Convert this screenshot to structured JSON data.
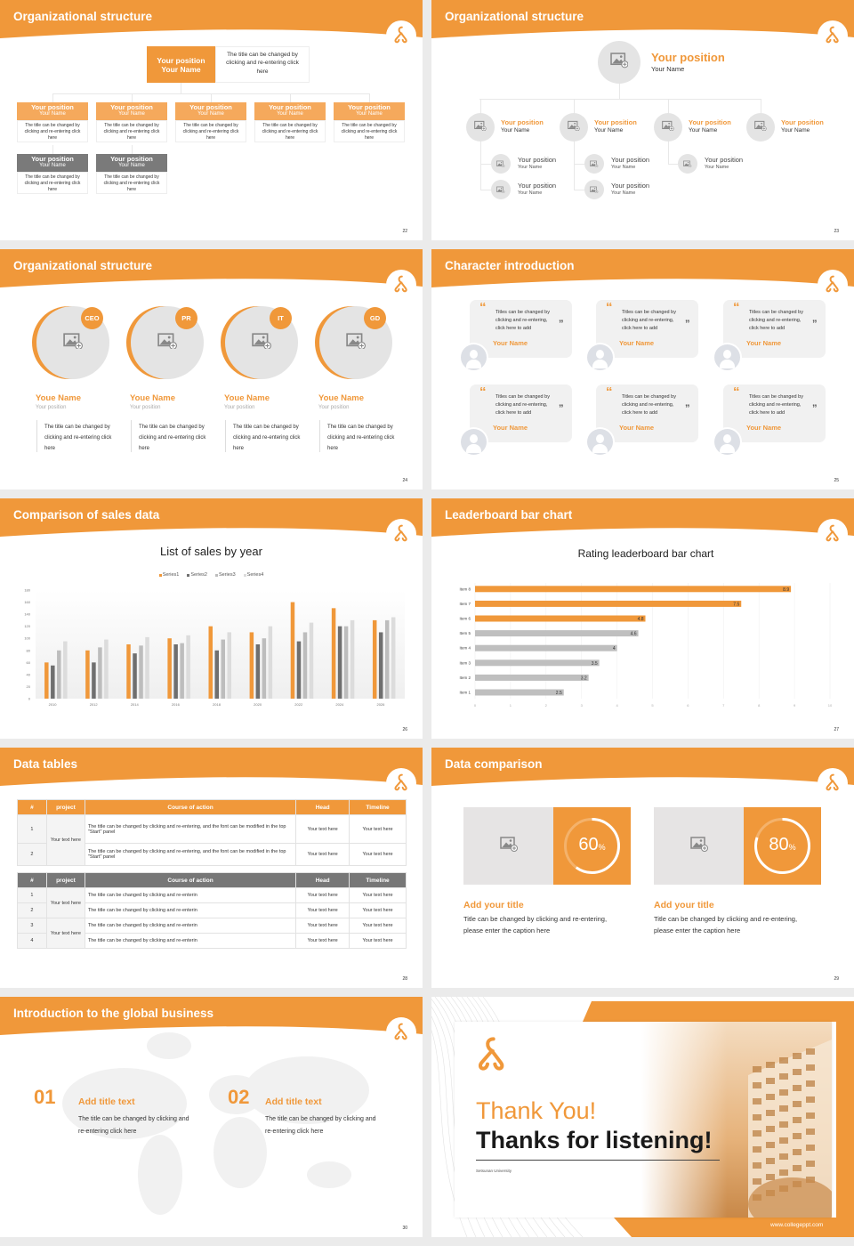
{
  "colors": {
    "accent": "#f0983a",
    "accent_light": "#f5a95c",
    "grey": "#7a7a7a",
    "placeholder": "#e6e6e6"
  },
  "slides": [
    {
      "title": "Organizational structure",
      "page": "22",
      "top": {
        "position": "Your position",
        "name": "Your Name",
        "desc": "The title can be changed by clicking and re-entering click here"
      },
      "cards": [
        {
          "position": "Your position",
          "name": "Your Name",
          "desc": "The title can be changed by clicking and re-entering click here"
        },
        {
          "position": "Your position",
          "name": "Your Name",
          "desc": "The title can be changed by clicking and re-entering click here"
        },
        {
          "position": "Your position",
          "name": "Your Name",
          "desc": "The title can be changed by clicking and re-entering click here"
        },
        {
          "position": "Your position",
          "name": "Your Name",
          "desc": "The title can be changed by clicking and re-entering click here"
        },
        {
          "position": "Your position",
          "name": "Your Name",
          "desc": "The title can be changed by clicking and re-entering click here"
        }
      ],
      "grey_cards": [
        {
          "position": "Your position",
          "name": "Your Name",
          "desc": "The title can be changed by clicking and re-entering click here"
        },
        {
          "position": "Your position",
          "name": "Your Name",
          "desc": "The title can be changed by clicking and re-entering click here"
        }
      ]
    },
    {
      "title": "Organizational structure",
      "page": "23",
      "top": {
        "position": "Your position",
        "name": "Your Name"
      },
      "nodes": [
        {
          "position": "Your position",
          "name": "Your Name",
          "children": [
            {
              "position": "Your position",
              "name": "Your Name"
            },
            {
              "position": "Your position",
              "name": "Your Name"
            }
          ]
        },
        {
          "position": "Your position",
          "name": "Your Name",
          "children": [
            {
              "position": "Your position",
              "name": "Your Name"
            },
            {
              "position": "Your position",
              "name": "Your Name"
            }
          ]
        },
        {
          "position": "Your position",
          "name": "Your Name",
          "children": [
            {
              "position": "Your position",
              "name": "Your Name"
            }
          ]
        },
        {
          "position": "Your position",
          "name": "Your Name",
          "children": []
        }
      ]
    },
    {
      "title": "Organizational structure",
      "page": "24",
      "members": [
        {
          "badge": "CEO",
          "name": "Youe Name",
          "position": "Your position",
          "desc": "The title can be changed by clicking and re-entering click here"
        },
        {
          "badge": "PR",
          "name": "Youe Name",
          "position": "Your position",
          "desc": "The title can be changed by clicking and re-entering click here"
        },
        {
          "badge": "IT",
          "name": "Youe Name",
          "position": "Your position",
          "desc": "The title can be changed by clicking and re-entering click here"
        },
        {
          "badge": "GD",
          "name": "Youe Name",
          "position": "Your position",
          "desc": "The title can be changed by clicking and re-entering click here"
        }
      ]
    },
    {
      "title": "Character introduction",
      "page": "25",
      "quotes": [
        {
          "text": "Titles can be changed by clicking and re-entering, click here to add",
          "name": "Your Name"
        },
        {
          "text": "Titles can be changed by clicking and re-entering, click here to add",
          "name": "Your Name"
        },
        {
          "text": "Titles can be changed by clicking and re-entering, click here to add",
          "name": "Your Name"
        },
        {
          "text": "Titles can be changed by clicking and re-entering, click here to add",
          "name": "Your Name"
        },
        {
          "text": "Titles can be changed by clicking and re-entering, click here to add",
          "name": "Your Name"
        },
        {
          "text": "Titles can be changed by clicking and re-entering, click here to add",
          "name": "Your Name"
        }
      ]
    },
    {
      "title": "Comparison of sales data",
      "page": "26"
    },
    {
      "title": "Leaderboard bar chart",
      "page": "27"
    },
    {
      "title": "Data tables",
      "page": "28",
      "headers": [
        "#",
        "project",
        "Course of action",
        "Head",
        "Timeline"
      ],
      "table1": {
        "project": "Your text here",
        "rows": [
          {
            "num": "1",
            "action": "The title can be changed by clicking and re-entering, and the font can be modified in the top \"Start\" panel",
            "head": "Your text here",
            "timeline": "Your text here"
          },
          {
            "num": "2",
            "action": "The title can be changed by clicking and re-entering, and the font can be modified in the top \"Start\" panel",
            "head": "Your text here",
            "timeline": "Your text here"
          }
        ]
      },
      "table2": {
        "projects": [
          "Your text here",
          "Your text here"
        ],
        "rows": [
          {
            "num": "1",
            "action": "The title can be changed by clicking and re-enterin",
            "head": "Your text here",
            "timeline": "Your text here"
          },
          {
            "num": "2",
            "action": "The title can be changed by clicking and re-enterin",
            "head": "Your text here",
            "timeline": "Your text here"
          },
          {
            "num": "3",
            "action": "The title can be changed by clicking and re-enterin",
            "head": "Your text here",
            "timeline": "Your text here"
          },
          {
            "num": "4",
            "action": "The title can be changed by clicking and re-enterin",
            "head": "Your text here",
            "timeline": "Your text here"
          }
        ]
      }
    },
    {
      "title": "Data comparison",
      "page": "29",
      "items": [
        {
          "percent": 60,
          "value": "60",
          "unit": "%",
          "title": "Add your title",
          "body": "Title can be changed by clicking and re-entering, please enter the caption here"
        },
        {
          "percent": 80,
          "value": "80",
          "unit": "%",
          "title": "Add your title",
          "body": "Title can be changed by clicking and re-entering, please enter the caption here"
        }
      ]
    },
    {
      "title": "Introduction to the global business",
      "page": "30",
      "items": [
        {
          "num": "01",
          "title": "Add title text",
          "body": "The title can be changed by clicking and re-entering click here"
        },
        {
          "num": "02",
          "title": "Add title text",
          "body": "The title can be changed by clicking and re-entering click here"
        }
      ]
    },
    {
      "thank_you": "Thank You!",
      "subtitle": "Thanks for listening!",
      "university": "Setsunan University",
      "website": "www.collegeppt.com"
    }
  ],
  "chart_data": [
    {
      "type": "bar",
      "title": "List of sales by year",
      "categories": [
        "2010",
        "2012",
        "2014",
        "2016",
        "2018",
        "2020",
        "2022",
        "2024",
        "2026"
      ],
      "series": [
        {
          "name": "Series1",
          "color": "#f0983a",
          "values": [
            60,
            80,
            90,
            100,
            120,
            110,
            160,
            150,
            130
          ]
        },
        {
          "name": "Series2",
          "color": "#6f6f6f",
          "values": [
            55,
            60,
            75,
            90,
            80,
            90,
            95,
            120,
            110
          ]
        },
        {
          "name": "Series3",
          "color": "#bdbdbd",
          "values": [
            80,
            85,
            88,
            92,
            98,
            100,
            110,
            120,
            130
          ]
        },
        {
          "name": "Series4",
          "color": "#dcdcdc",
          "values": [
            95,
            98,
            102,
            105,
            110,
            120,
            126,
            130,
            135
          ]
        }
      ],
      "ylim": [
        0,
        180
      ],
      "yticks": [
        "0",
        "20",
        "40",
        "60",
        "80",
        "100",
        "120",
        "140",
        "160",
        "180"
      ],
      "legend": "top"
    },
    {
      "type": "bar",
      "orientation": "horizontal",
      "title": "Rating leaderboard bar chart",
      "categories": [
        "Item 1",
        "Item 2",
        "Item 3",
        "Item 4",
        "Item 5",
        "Item 6",
        "Item 7",
        "Item 8"
      ],
      "values": [
        2.5,
        3.2,
        3.5,
        4,
        4.6,
        4.8,
        7.5,
        8.9
      ],
      "labels": [
        "2.5",
        "3.2",
        "3.5",
        "4",
        "4.6",
        "4.8",
        "7.5",
        "8.9"
      ],
      "highlight": [
        "Item 6",
        "Item 7",
        "Item 8"
      ],
      "highlight_color": "#f0983a",
      "base_color": "#bfbfbf",
      "xlim": [
        0,
        10
      ],
      "xticks": [
        "0",
        "1",
        "2",
        "3",
        "4",
        "5",
        "6",
        "7",
        "8",
        "9",
        "10"
      ],
      "grid": true
    }
  ]
}
